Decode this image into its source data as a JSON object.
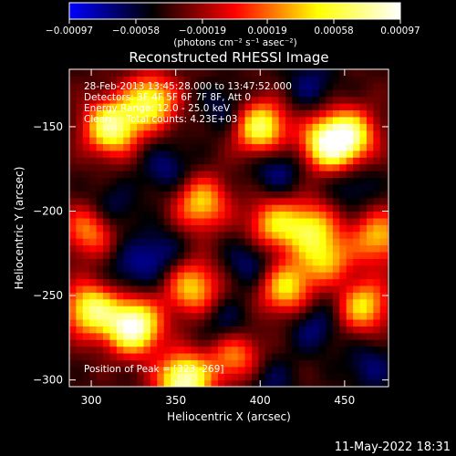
{
  "chart_data": {
    "type": "heatmap",
    "title": "Reconstructed RHESSI Image",
    "xlabel": "Heliocentric X (arcsec)",
    "ylabel": "Heliocentric Y (arcsec)",
    "xlim": [
      287,
      476
    ],
    "ylim": [
      -304,
      -116
    ],
    "x_ticks": [
      300,
      350,
      400,
      450
    ],
    "y_ticks": [
      -150,
      -200,
      -250,
      -300
    ],
    "x_tick_labels": [
      "300",
      "350",
      "400",
      "450"
    ],
    "y_tick_labels": [
      "−150",
      "−200",
      "−250",
      "−300"
    ],
    "colorbar": {
      "range": [
        -0.00097,
        0.00097
      ],
      "tick_values": [
        -0.00097,
        -0.00058,
        -0.00019,
        0.00019,
        0.00058,
        0.00097
      ],
      "tick_labels": [
        "−0.00097",
        "−0.00058",
        "−0.00019",
        "0.00019",
        "0.00058",
        "0.00097"
      ],
      "unit_label": "(photons cm⁻² s⁻¹ asec⁻²)",
      "colormap_stops": [
        "#0000ff",
        "#000000",
        "#ff0000",
        "#ffff00",
        "#ffffff"
      ]
    },
    "annotations": {
      "time_range": "28-Feb-2013 13:45:28.000 to 13:47:52.000",
      "detectors": "Detectors: 3F 4F 5F 6F 7F 8F, Att 0",
      "energy": "Energy Range: 12.0 - 25.0 keV",
      "clean": "Clean     Total counts: 4.23E+03",
      "peak": "Position of Peak = [323,-269]"
    },
    "peak_position": [
      323,
      -269
    ],
    "features": [
      {
        "kind": "bright",
        "x": 325,
        "y": -268,
        "intensity": 1.0
      },
      {
        "kind": "bright",
        "x": 355,
        "y": -300,
        "intensity": 0.9
      },
      {
        "kind": "bright",
        "x": 300,
        "y": -258,
        "intensity": 0.7
      },
      {
        "kind": "bright",
        "x": 312,
        "y": -150,
        "intensity": 0.8
      },
      {
        "kind": "bright",
        "x": 335,
        "y": -135,
        "intensity": 0.65
      },
      {
        "kind": "bright",
        "x": 400,
        "y": -150,
        "intensity": 0.75
      },
      {
        "kind": "bright",
        "x": 440,
        "y": -160,
        "intensity": 0.75
      },
      {
        "kind": "bright",
        "x": 453,
        "y": -155,
        "intensity": 0.6
      },
      {
        "kind": "bright",
        "x": 365,
        "y": -195,
        "intensity": 0.5
      },
      {
        "kind": "bright",
        "x": 408,
        "y": -208,
        "intensity": 0.45
      },
      {
        "kind": "bright",
        "x": 430,
        "y": -210,
        "intensity": 0.5
      },
      {
        "kind": "bright",
        "x": 415,
        "y": -245,
        "intensity": 0.55
      },
      {
        "kind": "bright",
        "x": 460,
        "y": -255,
        "intensity": 0.6
      },
      {
        "kind": "bright",
        "x": 440,
        "y": -230,
        "intensity": 0.45
      },
      {
        "kind": "bright",
        "x": 360,
        "y": -245,
        "intensity": 0.5
      },
      {
        "kind": "bright",
        "x": 300,
        "y": -210,
        "intensity": 0.45
      },
      {
        "kind": "bright",
        "x": 385,
        "y": -285,
        "intensity": 0.4
      },
      {
        "kind": "bright",
        "x": 470,
        "y": -215,
        "intensity": 0.45
      },
      {
        "kind": "dark",
        "x": 310,
        "y": -200,
        "intensity": -0.6
      },
      {
        "kind": "dark",
        "x": 345,
        "y": -175,
        "intensity": -0.5
      },
      {
        "kind": "dark",
        "x": 380,
        "y": -140,
        "intensity": -0.45
      },
      {
        "kind": "dark",
        "x": 430,
        "y": -125,
        "intensity": -0.45
      },
      {
        "kind": "dark",
        "x": 410,
        "y": -175,
        "intensity": -0.55
      },
      {
        "kind": "dark",
        "x": 455,
        "y": -185,
        "intensity": -0.4
      },
      {
        "kind": "dark",
        "x": 340,
        "y": -225,
        "intensity": -0.5
      },
      {
        "kind": "dark",
        "x": 395,
        "y": -230,
        "intensity": -0.55
      },
      {
        "kind": "dark",
        "x": 380,
        "y": -268,
        "intensity": -0.5
      },
      {
        "kind": "dark",
        "x": 432,
        "y": -268,
        "intensity": -0.5
      },
      {
        "kind": "dark",
        "x": 465,
        "y": -292,
        "intensity": -0.45
      },
      {
        "kind": "dark",
        "x": 405,
        "y": -300,
        "intensity": -0.4
      },
      {
        "kind": "dark",
        "x": 448,
        "y": -245,
        "intensity": -0.4
      },
      {
        "kind": "dark",
        "x": 322,
        "y": -235,
        "intensity": -0.4
      }
    ]
  },
  "footer": {
    "date": "11-May-2022 18:31"
  }
}
